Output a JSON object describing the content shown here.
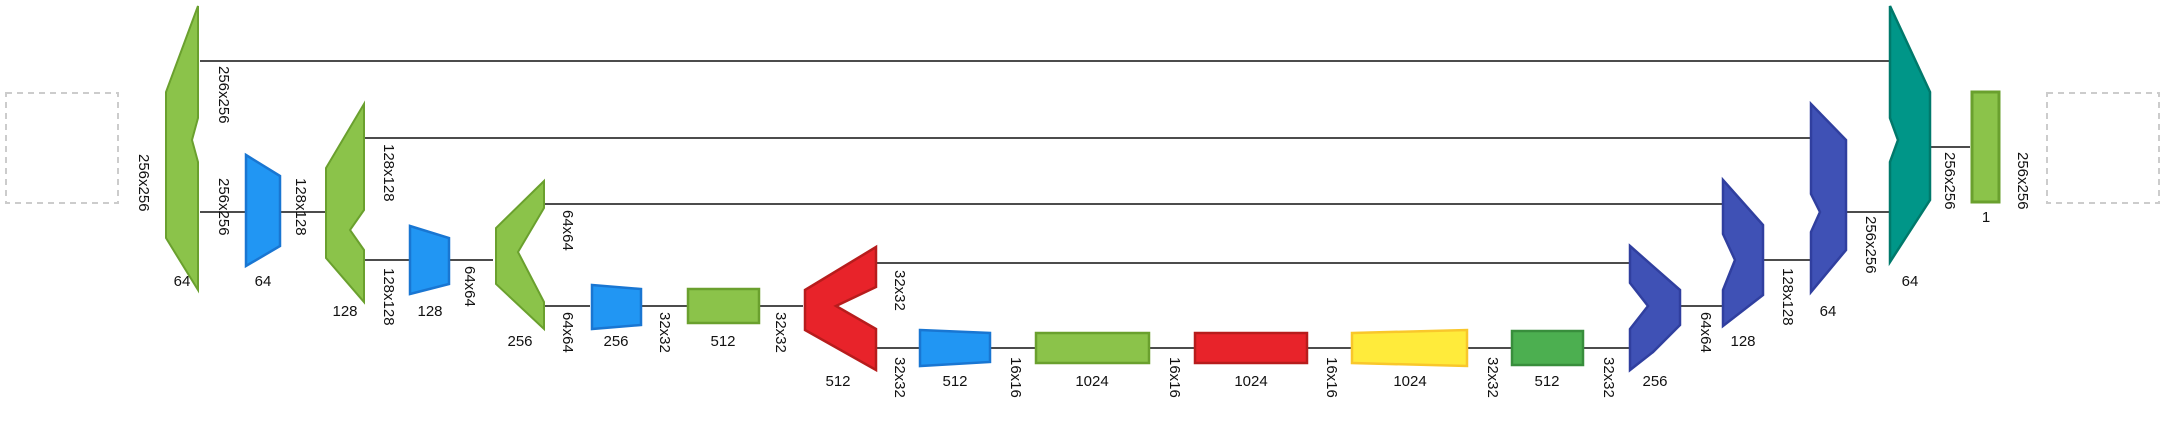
{
  "colors": {
    "green": "#8bc34a",
    "green_stroke": "#6aa02e",
    "blue": "#2196f3",
    "blue_stroke": "#1976d2",
    "red": "#e8232a",
    "red_stroke": "#b71c1c",
    "yellow": "#ffeb3b",
    "yellow_stroke": "#f9c72b",
    "dark_green": "#4caf50",
    "dark_green_stroke": "#388e3c",
    "indigo": "#3f51b5",
    "indigo_stroke": "#303f9f",
    "teal": "#009688",
    "teal_stroke": "#00796b",
    "line": "#111111",
    "placeholder": "#cccccc"
  },
  "labels": {
    "enc1_in": "256x256",
    "enc1_out": "256x256",
    "enc1_ch": "64",
    "pool1_ch": "64",
    "pool1_out": "128x128",
    "enc2_out": "128x128",
    "enc2_in": "128x128",
    "enc2_ch": "128",
    "pool2_ch": "128",
    "pool2_out": "64x64",
    "enc3_out": "64x64",
    "enc3_in": "64x64",
    "enc3_ch": "256",
    "pool3_ch": "256",
    "pool3_out": "32x32",
    "conv_ch": "512",
    "conv_out": "32x32",
    "red1_out": "32x32",
    "red1_in": "32x32",
    "red1_ch": "512",
    "pool4_ch": "512",
    "pool4_out": "16x16",
    "b1_ch": "1024",
    "b1_out": "16x16",
    "b2_ch": "1024",
    "b2_out": "16x16",
    "b3_ch": "1024",
    "b3_out": "32x32",
    "dg_ch": "512",
    "dg_out": "32x32",
    "dec3_ch": "256",
    "dec3_out": "64x64",
    "dec2_ch": "128",
    "dec2_out": "128x128",
    "dec1_ch": "64",
    "dec1_out": "256x256",
    "final_ch": "64",
    "final_out": "256x256",
    "out_ch": "1",
    "out_size": "256x256"
  }
}
